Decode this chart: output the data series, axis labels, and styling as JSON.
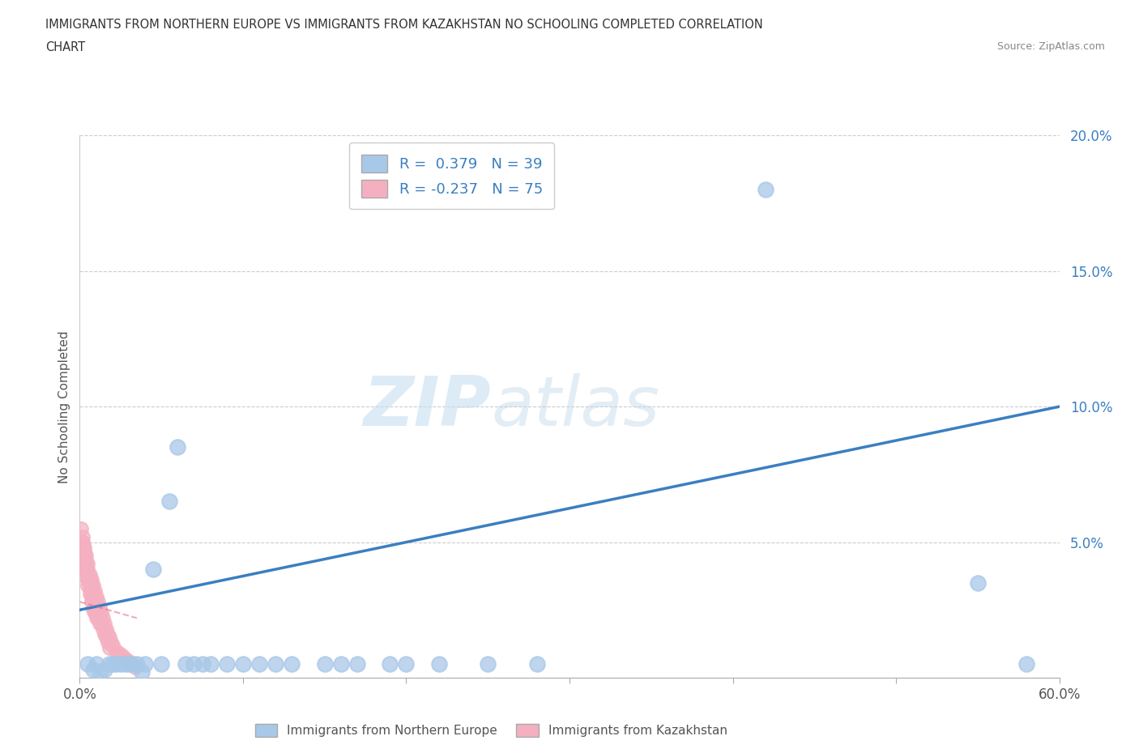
{
  "title_line1": "IMMIGRANTS FROM NORTHERN EUROPE VS IMMIGRANTS FROM KAZAKHSTAN NO SCHOOLING COMPLETED CORRELATION",
  "title_line2": "CHART",
  "source": "Source: ZipAtlas.com",
  "ylabel": "No Schooling Completed",
  "xlim": [
    0.0,
    0.6
  ],
  "ylim": [
    0.0,
    0.2
  ],
  "xtick_positions": [
    0.0,
    0.1,
    0.2,
    0.3,
    0.4,
    0.5,
    0.6
  ],
  "xticklabels": [
    "0.0%",
    "",
    "",
    "",
    "",
    "",
    "60.0%"
  ],
  "ytick_positions": [
    0.0,
    0.05,
    0.1,
    0.15,
    0.2
  ],
  "yticklabels": [
    "",
    "5.0%",
    "10.0%",
    "15.0%",
    "20.0%"
  ],
  "blue_R": 0.379,
  "blue_N": 39,
  "pink_R": -0.237,
  "pink_N": 75,
  "blue_scatter_color": "#a8c8e8",
  "pink_scatter_color": "#f4b0c0",
  "blue_line_color": "#3a7fc1",
  "pink_line_color": "#e87090",
  "watermark_zip": "ZIP",
  "watermark_atlas": "atlas",
  "blue_scatter_x": [
    0.005,
    0.008,
    0.01,
    0.012,
    0.015,
    0.018,
    0.02,
    0.022,
    0.025,
    0.028,
    0.03,
    0.032,
    0.035,
    0.038,
    0.04,
    0.045,
    0.05,
    0.055,
    0.06,
    0.065,
    0.07,
    0.075,
    0.08,
    0.09,
    0.1,
    0.11,
    0.12,
    0.13,
    0.15,
    0.16,
    0.17,
    0.19,
    0.2,
    0.22,
    0.25,
    0.28,
    0.55,
    0.58,
    0.42
  ],
  "blue_scatter_y": [
    0.005,
    0.003,
    0.005,
    0.002,
    0.003,
    0.005,
    0.005,
    0.005,
    0.005,
    0.005,
    0.005,
    0.005,
    0.005,
    0.002,
    0.005,
    0.04,
    0.005,
    0.065,
    0.085,
    0.005,
    0.005,
    0.005,
    0.005,
    0.005,
    0.005,
    0.005,
    0.005,
    0.005,
    0.005,
    0.005,
    0.005,
    0.005,
    0.005,
    0.005,
    0.005,
    0.005,
    0.035,
    0.005,
    0.18
  ],
  "pink_scatter_x": [
    0.001,
    0.002,
    0.003,
    0.004,
    0.005,
    0.006,
    0.007,
    0.008,
    0.009,
    0.01,
    0.011,
    0.012,
    0.013,
    0.014,
    0.015,
    0.016,
    0.017,
    0.018,
    0.019,
    0.02,
    0.022,
    0.024,
    0.026,
    0.028,
    0.03,
    0.032,
    0.034,
    0.002,
    0.003,
    0.004,
    0.005,
    0.006,
    0.007,
    0.008,
    0.009,
    0.01,
    0.011,
    0.012,
    0.013,
    0.014,
    0.015,
    0.016,
    0.017,
    0.018,
    0.003,
    0.004,
    0.005,
    0.006,
    0.007,
    0.008,
    0.009,
    0.01,
    0.011,
    0.012,
    0.004,
    0.005,
    0.006,
    0.007,
    0.008,
    0.009,
    0.01,
    0.005,
    0.006,
    0.007,
    0.008,
    0.003,
    0.004,
    0.005,
    0.006,
    0.002,
    0.003,
    0.004,
    0.005,
    0.002,
    0.003
  ],
  "pink_scatter_y": [
    0.055,
    0.052,
    0.048,
    0.045,
    0.042,
    0.038,
    0.036,
    0.034,
    0.032,
    0.03,
    0.028,
    0.026,
    0.024,
    0.022,
    0.02,
    0.018,
    0.016,
    0.015,
    0.013,
    0.012,
    0.01,
    0.009,
    0.008,
    0.007,
    0.006,
    0.005,
    0.004,
    0.05,
    0.046,
    0.043,
    0.04,
    0.037,
    0.034,
    0.031,
    0.028,
    0.026,
    0.024,
    0.022,
    0.02,
    0.018,
    0.016,
    0.015,
    0.013,
    0.011,
    0.044,
    0.041,
    0.038,
    0.035,
    0.032,
    0.029,
    0.026,
    0.024,
    0.022,
    0.02,
    0.039,
    0.036,
    0.033,
    0.03,
    0.027,
    0.024,
    0.022,
    0.034,
    0.031,
    0.028,
    0.025,
    0.046,
    0.042,
    0.038,
    0.035,
    0.048,
    0.044,
    0.04,
    0.036,
    0.05,
    0.047
  ],
  "blue_line_x": [
    0.0,
    0.6
  ],
  "blue_line_y": [
    0.025,
    0.1
  ],
  "pink_line_x": [
    0.0,
    0.035
  ],
  "pink_line_y": [
    0.028,
    0.022
  ],
  "background_color": "#ffffff",
  "grid_color": "#cccccc"
}
